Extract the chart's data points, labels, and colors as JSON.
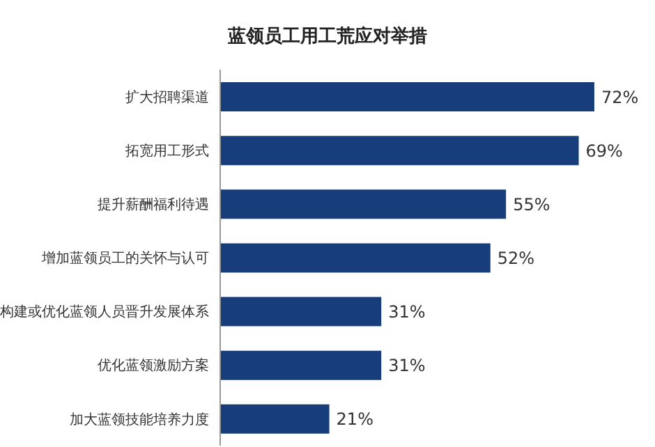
{
  "chart_data": {
    "type": "bar",
    "orientation": "horizontal",
    "title": "蓝领员工用工荒应对举措",
    "categories": [
      "扩大招聘渠道",
      "拓宽用工形式",
      "提升薪酬福利待遇",
      "增加蓝领员工的关怀与认可",
      "构建或优化蓝领人员晋升发展体系",
      "优化蓝领激励方案",
      "加大蓝领技能培养力度"
    ],
    "values": [
      72,
      69,
      55,
      52,
      31,
      31,
      21
    ],
    "value_labels": [
      "72%",
      "69%",
      "55%",
      "52%",
      "31%",
      "31%",
      "21%"
    ],
    "color": "#173d7a",
    "grid": false,
    "legend": false
  }
}
